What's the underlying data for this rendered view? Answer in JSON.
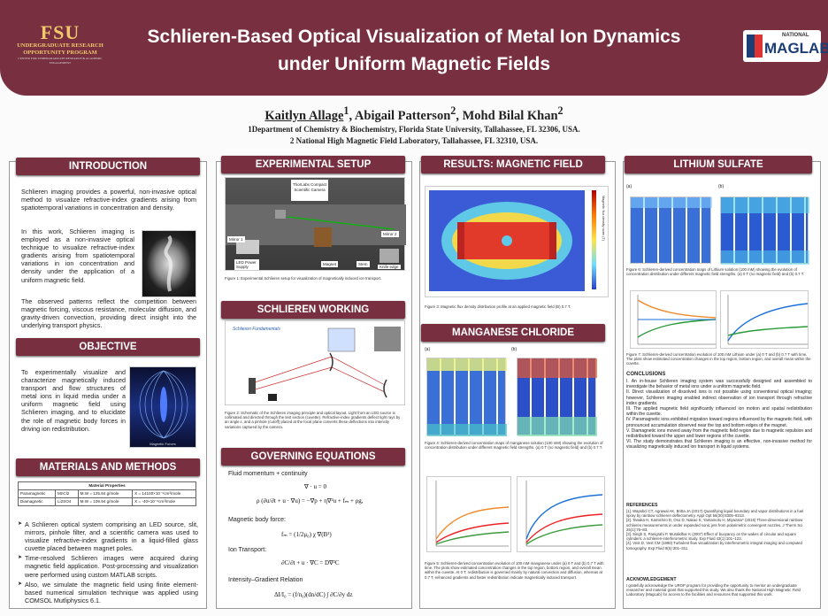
{
  "header": {
    "fsu_logo": {
      "big": "FSU",
      "line1": "UNDERGRADUATE RESEARCH",
      "line2": "OPPORTUNITY PROGRAM",
      "line3": "CENTER FOR UNDERGRADUATE RESEARCH & ACADEMIC ENGAGEMENT"
    },
    "title_line1": "Schlieren-Based Optical Visualization of Metal Ion Dynamics",
    "title_line2": "under Uniform Magnetic Fields",
    "maglab_logo": {
      "national": "NATIONAL",
      "maglab": "MAGLAB"
    }
  },
  "authors": {
    "a1": "Kaitlyn Allage",
    "s1": "1",
    "a2": "Abigail Patterson",
    "s2": "2",
    "a3": "Mohd Bilal Khan",
    "s3": "2"
  },
  "affiliations": [
    "1Department of Chemistry & Biochemistry, Florida State University, Tallahassee, FL 32306, USA.",
    "2 National High Magnetic Field Laboratory, Tallahassee, FL 32310, USA."
  ],
  "sections": {
    "introduction": "INTRODUCTION",
    "objective": "OBJECTIVE",
    "materials": "MATERIALS AND METHODS",
    "experimental": "EXPERIMENTAL SETUP",
    "schlieren": "SCHLIEREN WORKING",
    "governing": "GOVERNING EQUATIONS",
    "results": "RESULTS: MAGNETIC FIELD",
    "manganese": "MANGANESE CHLORIDE",
    "lithium": "LITHIUM SULFATE"
  },
  "intro": {
    "p1": "Schlieren imaging provides a powerful, non-invasive optical method to visualize refractive-index gradients arising from spatiotemporal variations in concentration and density.",
    "p2": "In this work, Schlieren imaging is employed as a non-invasive optical technique to visualize refractive-index gradients arising from spatiotemporal variations in ion concentration and density under the application of a uniform magnetic field.",
    "p3": "The observed patterns reflect the competition between magnetic forcing, viscous resistance, molecular diffusion, and gravity-driven convection, providing direct insight into the underlying transport physics."
  },
  "objective": {
    "text": "To experimentally visualize and characterize magnetically induced transport and flow structures of metal ions in liquid media under a uniform magnetic field using Schlieren imaging, and to elucidate the role of magnetic body forces in driving ion redistribution.",
    "img_caption": "Magnetic Forces"
  },
  "materials": {
    "table_title": "Material Properties",
    "rows": [
      {
        "type": "Paramagnetic",
        "formula": "MnCl2",
        "mw": "M.W = 125.84 g/mole",
        "chi": "X = 14100×10⁻⁶cm³/mole"
      },
      {
        "type": "Diamagnetic",
        "formula": "Li2SO4",
        "mw": "M.W = 109.94 g/mole",
        "chi": "X = -40×10⁻⁶cm³/mole"
      }
    ],
    "bullets": [
      "A Schlieren optical system comprising an LED source, slit, mirrors, pinhole filter, and a scientific camera was used to visualize refractive-index gradients in a liquid-filled glass cuvette placed between magnet poles.",
      "Time-resolved Schlieren images were acquired during magnetic field application. Post-processing and visualization were performed using custom MATLAB scripts.",
      "Also, we simulate the magnetic field using finite element-based numerical simulation technique was applied using COMSOL Mutliphysics 6.1."
    ]
  },
  "experimental": {
    "labels": {
      "camera": "ThorLabs Compact Scientific Camera",
      "mirror1": "Mirror 1",
      "mirror2": "Mirror 2",
      "led": "LED Power Supply",
      "magnet": "Magnet",
      "stem": "Stem",
      "knife": "Knife edge"
    },
    "caption": "Figure 1: Experimental Schlieren setup for visualization of magnetically induced ion transport."
  },
  "schlieren": {
    "diagram_title": "Schlieren Fundamentals",
    "caption": "Figure 2: Schematic of the Schlieren imaging principle and optical layout. Light from an LED source is collimated and directed through the test section (cuvette). Refractive-index gradients deflect light rays by an angle ε, and a pinhole (cutoff) placed at the focal plane converts these deflections into intensity variations captured by the camera."
  },
  "governing": {
    "fluid": "Fluid momentum + continuity",
    "continuity": "∇ · u = 0",
    "momentum": "ρ (∂u/∂t + u · ∇u) = −∇p + η∇²u + fₘ + ρg,",
    "body": "Magnetic body force:",
    "force": "fₘ = (1/2μ₀) χ ∇(B²)",
    "ion": "Ion Transport:",
    "transport": "∂C/∂t + u · ∇C = D∇²C",
    "intensity": "Intensity–Gradient Relation",
    "relation": "ΔI/I₀ = (f/n₀)(dn/dC) ∫ ∂C/∂y dz"
  },
  "results": {
    "colorbar_label": "Magnetic flux density norm (T)",
    "caption": "Figure 3: Magnetic flux density distribution profile at an applied magnetic field (B) 0.7 T."
  },
  "manganese": {
    "panel_a": "(a)",
    "panel_b": "(b)",
    "caption4": "Figure 4: Schlieren-derived concentration maps of manganese solution (100 mM) showing the evolution of concentration distribution under different magnetic field strengths. (a) 0 T (no magnetic field) and (b) 0.7 T.",
    "caption5": "Figure 5: Schlieren-derived concentration evolution of 100 mM manganese under (a) 0 T and (b) 0.7 T with time. The plots show estimated concentration changes in the top region, bottom region, and overall mean within the cuvette. At 0 T, redistribution is governed mainly by natural convection and diffusion, whereas at 0.7 T, enhanced gradients and faster redistribution indicate magnetically induced transport."
  },
  "lithium": {
    "panel_a": "(a)",
    "panel_b": "(b)",
    "caption6": "Figure 6: Schlieren-derived concentration maps of Lithium solution (100 mM) showing the evolution of concentration distribution under different magnetic field strengths. (a) 0 T (no magnetic field) and (b) 0.7 T.",
    "caption7": "Figure 7: Schlieren-derived concentration evolution of 100 mM Lithium under (a) 0 T and (b) 0.7 T with time. The plots show estimated concentration changes in the top region, bottom region, and overall mean within the cuvette.",
    "conclusions_title": "CONCLUSIONS",
    "conclusions": [
      "I.   An in-house Schlieren imaging system was successfully designed and assembled to investigate the behavior of metal ions under a uniform magnetic field.",
      "II.  Direct visualization of dissolved ions is not possible using conventional optical imaging; however, Schlieren imaging enabled indirect observation of ion transport through refractive index gradients.",
      "III. The applied magnetic field significantly influenced ion motion and spatial redistribution within the cuvette.",
      "IV.  Paramagnetic ions exhibited migration toward regions influenced by the magnetic field, with pronounced accumulation observed near the top and bottom edges of the magnet.",
      "V.   Diamagnetic ions moved away from the magnetic field region due to magnetic repulsion and redistributed toward the upper and lower regions of the cuvette.",
      "VI.  The study demonstrates that Schlieren imaging is an effective, non-invasive method for visualizing magnetically induced ion transport in liquid systems."
    ],
    "references_title": "REFERENCES",
    "references": [
      "[1]. Wapsbcl CT, Agrawal AK, Britta JA (2017) Quantifying liquid boundary and vapor distributions in a fuel spray by rainbow schlieren deflectometry. Appl Opt 56(30):8305–8313.",
      "[2]. Tanaka H, Kamishiro D, Oso D, Nakao S, Yamamoto H, Miyazato* (2016) Three-dimensional rainbow schlieren measurements in under expanded sonic jets from polarimetric convergent nozzles. J Therm Sci 25(1):76–83.",
      "[3]. Singh S, Panigrahi P, Muralidhar K (2007) Effect of buoyancy on the wakes of circular and square cylinders: a schlieren-interferometric study. Exp Fluid 43(1):101–123.",
      "[4]. Vest D, Vest CM (1990) Turbulent flow visualization by interferometric integral imaging and computed tomography. Exp Fluid 9(5):301–311."
    ],
    "ack_title": "ACKNOWLEDGEMENT",
    "ack": "I gratefully acknowledge the UROP program for providing the opportunity to mentor an undergraduate researcher and material grant that supported this study. We also thank the National High Magnetic Field Laboratory (MagLab) for access to the facilities and resources that supported this work."
  },
  "colors": {
    "garnet": "#782f40",
    "gold": "#f1c96b"
  }
}
